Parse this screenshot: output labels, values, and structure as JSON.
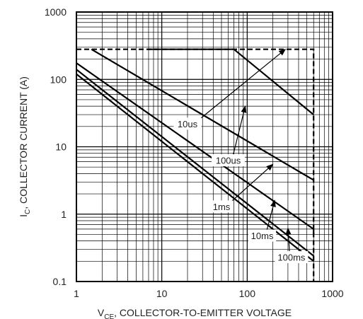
{
  "chart_data": {
    "type": "line",
    "title": "",
    "xlabel_main": "V",
    "xlabel_sub": "CE",
    "xlabel_rest": ", COLLECTOR-TO-EMITTER VOLTAGE",
    "ylabel_main": "I",
    "ylabel_sub": "C",
    "ylabel_rest": ", COLLECTOR CURRENT (A)",
    "xscale": "log",
    "yscale": "log",
    "xlim": [
      1,
      1000
    ],
    "ylim": [
      0.1,
      1000
    ],
    "x_ticks": [
      "1",
      "10",
      "100",
      "1000"
    ],
    "y_ticks": [
      "0.1",
      "1",
      "10",
      "100",
      "1000"
    ],
    "grid": true,
    "boundary": {
      "style": "dashed",
      "x": [
        1,
        600,
        600
      ],
      "y": [
        280,
        280,
        0.1
      ]
    },
    "series": [
      {
        "name": "10us",
        "x": [
          7,
          70,
          600
        ],
        "y": [
          280,
          280,
          30
        ]
      },
      {
        "name": "100us",
        "x": [
          1.5,
          600
        ],
        "y": [
          280,
          3.2
        ]
      },
      {
        "name": "1ms",
        "x": [
          1,
          600,
          600
        ],
        "y": [
          175,
          0.6,
          0.5
        ]
      },
      {
        "name": "10ms",
        "x": [
          1,
          600
        ],
        "y": [
          140,
          0.24
        ]
      },
      {
        "name": "100ms",
        "x": [
          1,
          600
        ],
        "y": [
          120,
          0.2
        ]
      }
    ],
    "annotations": [
      {
        "text": "10us",
        "x": 20,
        "y": 22,
        "arrow_to": [
          280,
          280
        ]
      },
      {
        "text": "100us",
        "x": 60,
        "y": 6.3,
        "arrow_to": [
          95,
          40
        ]
      },
      {
        "text": "1ms",
        "x": 50,
        "y": 1.3,
        "arrow_to": [
          200,
          5.5
        ]
      },
      {
        "text": "10ms",
        "x": 150,
        "y": 0.48,
        "arrow_to": [
          210,
          1.6
        ]
      },
      {
        "text": "100ms",
        "x": 330,
        "y": 0.23,
        "arrow_to": [
          300,
          0.62
        ]
      }
    ]
  }
}
